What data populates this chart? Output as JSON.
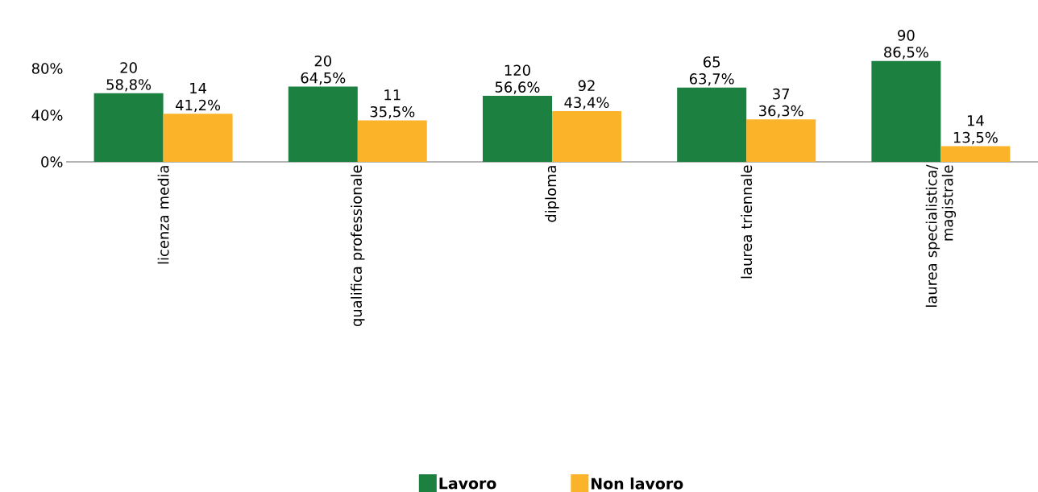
{
  "chart_data": {
    "type": "bar",
    "categories": [
      "licenza media",
      "qualifica professionale",
      "diploma",
      "laurea triennale",
      "laurea specialistica/ magistrale"
    ],
    "series": [
      {
        "name": "Lavoro",
        "color": "#1b8040",
        "values": [
          58.8,
          64.5,
          56.6,
          63.7,
          86.5
        ],
        "value_labels": [
          "20 58,8%",
          "20 64,5%",
          "120 56,6%",
          "65 63,7%",
          "90 86,5%"
        ]
      },
      {
        "name": "Non lavoro",
        "color": "#fbb42a",
        "values": [
          41.2,
          35.5,
          43.4,
          36.3,
          13.5
        ],
        "value_labels": [
          "14 41,2%",
          "11 35,5%",
          "92 43,4%",
          "37 36,3%",
          "14 13,5%"
        ]
      }
    ],
    "ylim": [
      0,
      86.5
    ],
    "yticks": [
      {
        "value": 0,
        "label": "0%"
      },
      {
        "value": 40,
        "label": "40%"
      },
      {
        "value": 80,
        "label": "80%"
      }
    ],
    "legend": "bottom"
  }
}
